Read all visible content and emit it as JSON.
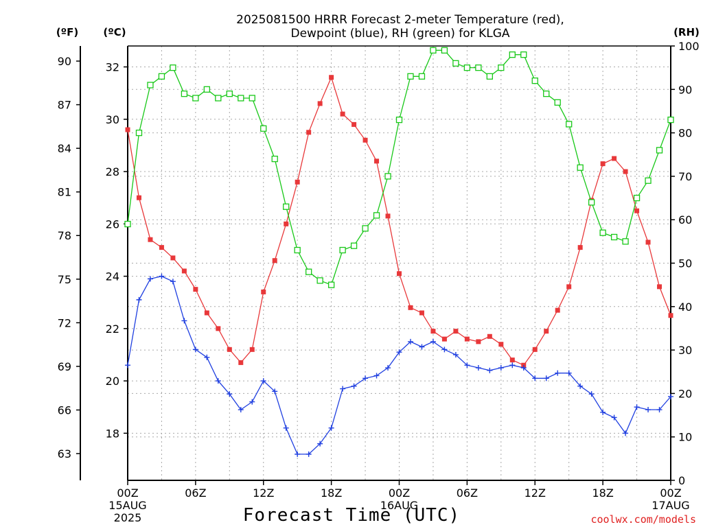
{
  "chart_data": {
    "type": "line",
    "title_lines": [
      "2025081500 HRRR Forecast 2-meter Temperature (red),",
      "Dewpoint (blue), RH (green) for KLGA"
    ],
    "xlabel": "Forecast Time (UTC)",
    "credit": "coolwx.com/models",
    "unit_labels": {
      "fahrenheit": "(ºF)",
      "celsius": "(ºC)",
      "rh": "(RH)"
    },
    "x_range_hours": [
      0,
      48
    ],
    "x_ticks": [
      {
        "hour": 0,
        "label": "00Z",
        "sub1": "15AUG",
        "sub2": "2025"
      },
      {
        "hour": 6,
        "label": "06Z",
        "sub1": "",
        "sub2": ""
      },
      {
        "hour": 12,
        "label": "12Z",
        "sub1": "",
        "sub2": ""
      },
      {
        "hour": 18,
        "label": "18Z",
        "sub1": "",
        "sub2": ""
      },
      {
        "hour": 24,
        "label": "00Z",
        "sub1": "16AUG",
        "sub2": ""
      },
      {
        "hour": 30,
        "label": "06Z",
        "sub1": "",
        "sub2": ""
      },
      {
        "hour": 36,
        "label": "12Z",
        "sub1": "",
        "sub2": ""
      },
      {
        "hour": 42,
        "label": "18Z",
        "sub1": "",
        "sub2": ""
      },
      {
        "hour": 48,
        "label": "00Z",
        "sub1": "17AUG",
        "sub2": ""
      }
    ],
    "celsius_axis": {
      "range": [
        16.2,
        32.8
      ],
      "ticks": [
        "18",
        "20",
        "22",
        "24",
        "26",
        "28",
        "30",
        "32"
      ]
    },
    "fahrenheit_axis": {
      "ticks": [
        "63",
        "66",
        "69",
        "72",
        "75",
        "78",
        "81",
        "84",
        "87",
        "90"
      ]
    },
    "rh_axis": {
      "range": [
        0,
        100
      ],
      "ticks": [
        "0",
        "10",
        "20",
        "30",
        "40",
        "50",
        "60",
        "70",
        "80",
        "90",
        "100"
      ]
    },
    "series": [
      {
        "name": "Temperature",
        "axis": "celsius",
        "color": "#e8383a",
        "marker": "filled-square",
        "values": [
          29.6,
          27.0,
          25.4,
          25.1,
          24.7,
          24.2,
          23.5,
          22.6,
          22.0,
          21.2,
          20.7,
          21.2,
          23.4,
          24.6,
          26.0,
          27.6,
          29.5,
          30.6,
          31.6,
          30.2,
          29.8,
          29.2,
          28.4,
          26.3,
          24.1,
          22.8,
          22.6,
          21.9,
          21.6,
          21.9,
          21.6,
          21.5,
          21.7,
          21.4,
          20.8,
          20.6,
          21.2,
          21.9,
          22.7,
          23.6,
          25.1,
          26.9,
          28.3,
          28.5,
          28.0,
          26.5,
          25.3,
          23.6,
          22.5
        ]
      },
      {
        "name": "Dewpoint",
        "axis": "celsius",
        "color": "#1f3fe0",
        "marker": "plus",
        "values": [
          20.6,
          23.1,
          23.9,
          24.0,
          23.8,
          22.3,
          21.2,
          20.9,
          20.0,
          19.5,
          18.9,
          19.2,
          20.0,
          19.6,
          18.2,
          17.2,
          17.2,
          17.6,
          18.2,
          19.7,
          19.8,
          20.1,
          20.2,
          20.5,
          21.1,
          21.5,
          21.3,
          21.5,
          21.2,
          21.0,
          20.6,
          20.5,
          20.4,
          20.5,
          20.6,
          20.5,
          20.1,
          20.1,
          20.3,
          20.3,
          19.8,
          19.5,
          18.8,
          18.6,
          18.0,
          19.0,
          18.9,
          18.9,
          19.4
        ]
      },
      {
        "name": "RH",
        "axis": "rh",
        "color": "#18c818",
        "marker": "open-square",
        "values": [
          59,
          80,
          91,
          93,
          95,
          89,
          88,
          90,
          88,
          89,
          88,
          88,
          81,
          74,
          63,
          53,
          48,
          46,
          45,
          53,
          54,
          58,
          61,
          70,
          83,
          93,
          93,
          99,
          99,
          96,
          95,
          95,
          93,
          95,
          98,
          98,
          92,
          89,
          87,
          82,
          72,
          64,
          57,
          56,
          55,
          65,
          69,
          76,
          83
        ]
      }
    ],
    "grid": true,
    "legend": "none"
  }
}
